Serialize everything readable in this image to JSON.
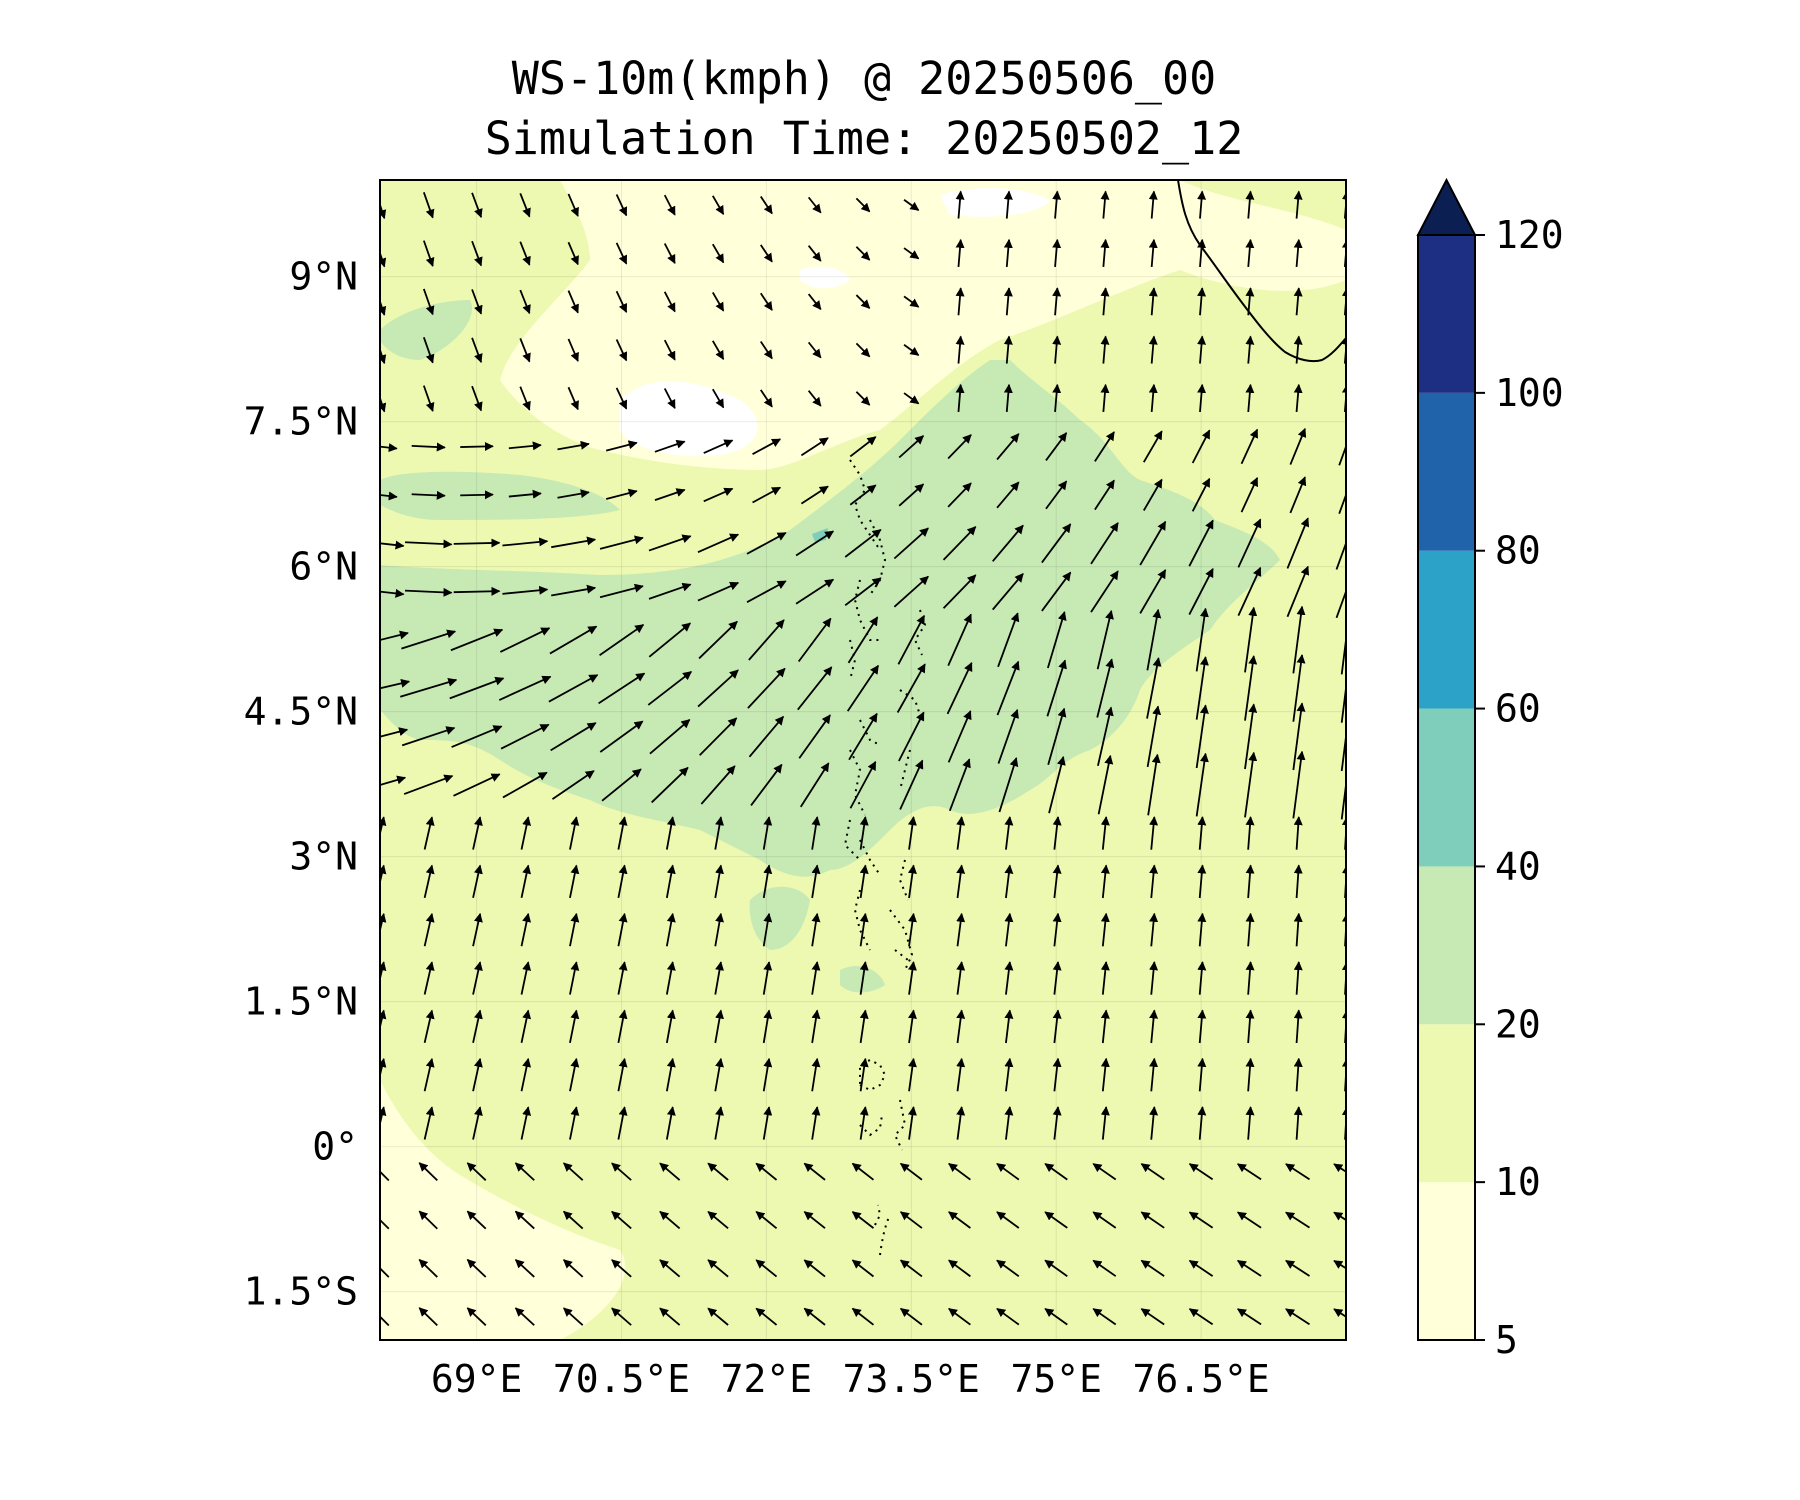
{
  "title": {
    "line1": "WS-10m(kmph) @ 20250506_00",
    "line2": "Simulation Time: 20250502_12"
  },
  "map": {
    "lon_range": [
      68.0,
      78.0
    ],
    "lat_range": [
      -2.0,
      10.0
    ],
    "lat_ticks": [
      {
        "value": 9.0,
        "label": "9°N"
      },
      {
        "value": 7.5,
        "label": "7.5°N"
      },
      {
        "value": 6.0,
        "label": "6°N"
      },
      {
        "value": 4.5,
        "label": "4.5°N"
      },
      {
        "value": 3.0,
        "label": "3°N"
      },
      {
        "value": 1.5,
        "label": "1.5°N"
      },
      {
        "value": 0.0,
        "label": "0°"
      },
      {
        "value": -1.5,
        "label": "1.5°S"
      }
    ],
    "lon_ticks": [
      {
        "value": 69.0,
        "label": "69°E"
      },
      {
        "value": 70.5,
        "label": "70.5°E"
      },
      {
        "value": 72.0,
        "label": "72°E"
      },
      {
        "value": 73.5,
        "label": "73.5°E"
      },
      {
        "value": 75.0,
        "label": "75°E"
      },
      {
        "value": 76.5,
        "label": "76.5°E"
      }
    ],
    "gridlines": true,
    "background_fill_color": "#edf8b1",
    "regions": [
      {
        "name": "core-10-20",
        "speed_band": "10-20",
        "color": "#edf8b1"
      },
      {
        "name": "jet-20-40",
        "speed_band": "20-40",
        "color": "#c7e9b4"
      },
      {
        "name": "calm-5-10",
        "speed_band": "5-10",
        "color": "#ffffd9"
      },
      {
        "name": "calm-below-5",
        "speed_band": "<5",
        "color": "#ffffff"
      },
      {
        "name": "speck-40-60",
        "speed_band": "40-60",
        "color": "#7fcdbb"
      }
    ]
  },
  "colorbar": {
    "extend": "max",
    "levels": [
      {
        "label": "5",
        "value": 5,
        "color": "#ffffd9"
      },
      {
        "label": "10",
        "value": 10,
        "color": "#edf8b1"
      },
      {
        "label": "20",
        "value": 20,
        "color": "#c7e9b4"
      },
      {
        "label": "40",
        "value": 40,
        "color": "#7fcdbb"
      },
      {
        "label": "60",
        "value": 60,
        "color": "#2ca2c8"
      },
      {
        "label": "80",
        "value": 80,
        "color": "#2163aa"
      },
      {
        "label": "100",
        "value": 100,
        "color": "#1d2f82"
      },
      {
        "label": "120",
        "value": 120,
        "color": "#0c1f52"
      }
    ]
  },
  "colors": {
    "arrow": "#000000",
    "coast": "#000000"
  }
}
